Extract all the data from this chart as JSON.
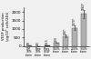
{
  "groups": [
    {
      "label": "GM\n10%\nclone",
      "value": 50,
      "color": "#b0b0b0",
      "err": 8
    },
    {
      "label": "Puro\n10%\nclone",
      "value": 8.5,
      "color": "#b0b0b0",
      "err": 1.5
    },
    {
      "label": "Pheo\nVEGF\nclone",
      "value": 55,
      "color": "#222222",
      "err": 6
    },
    {
      "label": "100%\nclone",
      "value": 200,
      "color": "#b0b0b0",
      "err": 22
    },
    {
      "label": "150%\nclone",
      "value": 590,
      "color": "#b0b0b0",
      "err": 70
    },
    {
      "label": "200%\nclone",
      "value": 1070,
      "color": "#b0b0b0",
      "err": 130
    },
    {
      "label": "300%\nclone",
      "value": 1880,
      "color": "#b0b0b0",
      "err": 220
    }
  ],
  "top_labels": [
    "50",
    "8.5",
    "54.5",
    "200",
    "590*",
    "1070*",
    "1880*"
  ],
  "ylabel": "VEGF production\n(pg/10⁶ cells/24h)",
  "ylim": [
    0,
    2300
  ],
  "yticks": [
    0,
    500,
    1000,
    1500,
    2000
  ],
  "background_color": "#f0f0f0"
}
